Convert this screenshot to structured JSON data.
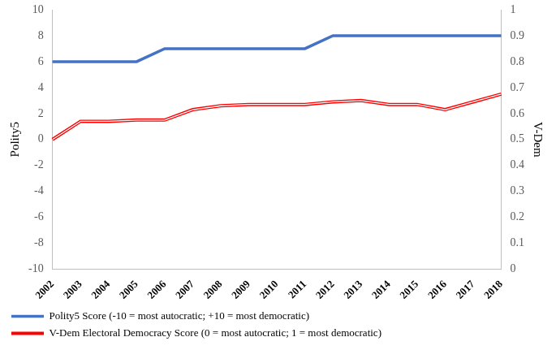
{
  "chart_data": {
    "type": "line",
    "categories": [
      "2002",
      "2003",
      "2004",
      "2005",
      "2006",
      "2007",
      "2008",
      "2009",
      "2010",
      "2011",
      "2012",
      "2013",
      "2014",
      "2015",
      "2016",
      "2017",
      "2018"
    ],
    "series": [
      {
        "name": "Polity5 Score (-10 = most autocratic; +10 = most democratic)",
        "color": "#4472c4",
        "values": [
          6,
          6,
          6,
          6,
          7,
          7,
          7,
          7,
          7,
          7,
          8,
          8,
          8,
          8,
          8,
          8,
          8
        ]
      },
      {
        "name": "V-Dem Electoral Democracy Score (0 = most autocratic; 1 = most democratic)",
        "color": "#ff0000",
        "axis": "y2",
        "line_style": "double",
        "values": [
          0.5,
          0.57,
          0.57,
          0.575,
          0.575,
          0.615,
          0.63,
          0.635,
          0.635,
          0.635,
          0.645,
          0.65,
          0.635,
          0.635,
          0.615,
          0.645,
          0.675
        ]
      }
    ],
    "ylabel": "Polity5",
    "y2label": "V-Dem",
    "ylim": [
      -10,
      10
    ],
    "yticks": [
      -10,
      -8,
      -6,
      -4,
      -2,
      0,
      2,
      4,
      6,
      8,
      10
    ],
    "y2lim": [
      0,
      1
    ],
    "y2ticks": [
      0,
      0.1,
      0.2,
      0.3,
      0.4,
      0.5,
      0.6,
      0.7,
      0.8,
      0.9,
      1
    ],
    "grid": false,
    "legend": "bottom"
  }
}
